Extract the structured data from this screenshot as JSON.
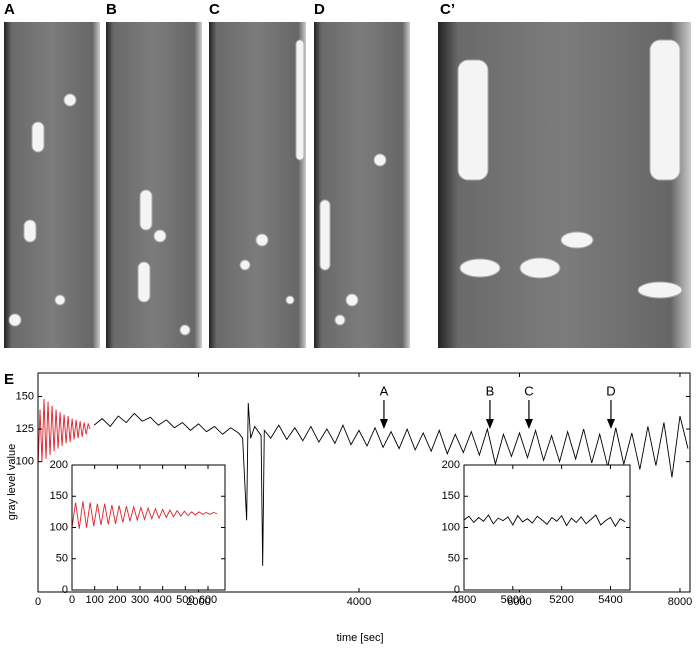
{
  "panels": [
    {
      "label": "A"
    },
    {
      "label": "B"
    },
    {
      "label": "C"
    },
    {
      "label": "D"
    },
    {
      "label": "C’"
    }
  ],
  "chart_data": {
    "type": "line",
    "label": "E",
    "xlabel": "time [sec]",
    "ylabel": "gray level value",
    "xlim": [
      0,
      8125
    ],
    "ylim": [
      0,
      168
    ],
    "xticks": [
      0,
      2000,
      4000,
      6000,
      8000
    ],
    "yticks": [
      100,
      125,
      150
    ],
    "series": [
      {
        "color": "#e0202a",
        "x": [
          0,
          25,
          50,
          75,
          100,
          125,
          150,
          175,
          200,
          225,
          250,
          275,
          300,
          325,
          350,
          375,
          400,
          425,
          450,
          475,
          500,
          525,
          550,
          575,
          600,
          625,
          650
        ],
        "values": [
          95,
          140,
          100,
          148,
          102,
          146,
          105,
          143,
          108,
          140,
          110,
          138,
          112,
          136,
          114,
          135,
          115,
          133,
          117,
          132,
          118,
          131,
          119,
          130,
          121,
          129,
          125
        ]
      },
      {
        "color": "#000000",
        "x": [
          700,
          800,
          900,
          1000,
          1100,
          1200,
          1300,
          1400,
          1500,
          1600,
          1700,
          1800,
          1900,
          2000,
          2100,
          2200,
          2300,
          2400,
          2500,
          2550,
          2580,
          2600,
          2620,
          2650,
          2700,
          2780,
          2800,
          2820,
          2900,
          3000,
          3100,
          3200,
          3300,
          3400,
          3500,
          3600,
          3700,
          3800,
          3900,
          4000,
          4100,
          4200,
          4300,
          4400,
          4500,
          4600,
          4700,
          4800,
          4900,
          5000,
          5100,
          5200,
          5300,
          5400,
          5500,
          5600,
          5700,
          5800,
          5900,
          6000,
          6100,
          6200,
          6300,
          6400,
          6500,
          6600,
          6700,
          6800,
          6900,
          7000,
          7100,
          7200,
          7300,
          7400,
          7500,
          7600,
          7700,
          7800,
          7900,
          8000,
          8100
        ],
        "values": [
          128,
          133,
          127,
          135,
          130,
          137,
          131,
          134,
          128,
          132,
          126,
          130,
          124,
          129,
          123,
          127,
          121,
          126,
          122,
          118,
          80,
          55,
          145,
          118,
          127,
          120,
          20,
          124,
          118,
          128,
          117,
          126,
          116,
          127,
          115,
          125,
          114,
          128,
          113,
          124,
          112,
          126,
          111,
          123,
          110,
          125,
          109,
          122,
          108,
          124,
          106,
          121,
          107,
          123,
          105,
          125,
          98,
          121,
          104,
          122,
          103,
          124,
          101,
          120,
          100,
          123,
          102,
          125,
          99,
          121,
          96,
          126,
          98,
          122,
          94,
          127,
          97,
          130,
          88,
          135,
          110
        ]
      }
    ],
    "annotations": [
      {
        "text": "A",
        "x": 4311
      },
      {
        "text": "B",
        "x": 5632
      },
      {
        "text": "C",
        "x": 6118
      },
      {
        "text": "D",
        "x": 7140
      }
    ],
    "insets": [
      {
        "xlim": [
          0,
          675
        ],
        "ylim": [
          0,
          200
        ],
        "xticks": [
          0,
          100,
          200,
          300,
          400,
          500,
          600
        ],
        "yticks": [
          0,
          50,
          100,
          150,
          200
        ],
        "series": [
          {
            "color": "#e0202a",
            "x": [
              0,
              16,
              32,
              48,
              64,
              80,
              96,
              112,
              128,
              144,
              160,
              176,
              192,
              208,
              224,
              240,
              256,
              272,
              288,
              304,
              320,
              336,
              352,
              368,
              384,
              400,
              416,
              432,
              448,
              464,
              480,
              496,
              512,
              528,
              544,
              560,
              576,
              592,
              608,
              624,
              640
            ],
            "values": [
              100,
              140,
              98,
              142,
              100,
              140,
              102,
              138,
              104,
              138,
              105,
              136,
              106,
              135,
              108,
              134,
              110,
              133,
              112,
              132,
              113,
              131,
              114,
              130,
              115,
              129,
              116,
              128,
              117,
              127,
              118,
              126,
              119,
              125,
              120,
              125,
              121,
              124,
              121,
              124,
              122
            ]
          }
        ]
      },
      {
        "xlim": [
          4800,
          5480
        ],
        "ylim": [
          0,
          200
        ],
        "xticks": [
          4800,
          5000,
          5200,
          5400
        ],
        "yticks": [
          0,
          50,
          100,
          150,
          200
        ],
        "series": [
          {
            "color": "#000000",
            "x": [
              4800,
              4820,
              4840,
              4860,
              4880,
              4900,
              4920,
              4940,
              4960,
              4980,
              5000,
              5020,
              5040,
              5060,
              5080,
              5100,
              5120,
              5140,
              5160,
              5180,
              5200,
              5220,
              5240,
              5260,
              5280,
              5300,
              5320,
              5340,
              5360,
              5380,
              5400,
              5420,
              5440,
              5460
            ],
            "values": [
              112,
              118,
              108,
              116,
              110,
              120,
              106,
              115,
              111,
              117,
              104,
              119,
              109,
              114,
              107,
              118,
              112,
              105,
              116,
              110,
              119,
              103,
              115,
              108,
              117,
              106,
              113,
              120,
              104,
              111,
              116,
              102,
              114,
              109
            ]
          }
        ]
      }
    ]
  }
}
